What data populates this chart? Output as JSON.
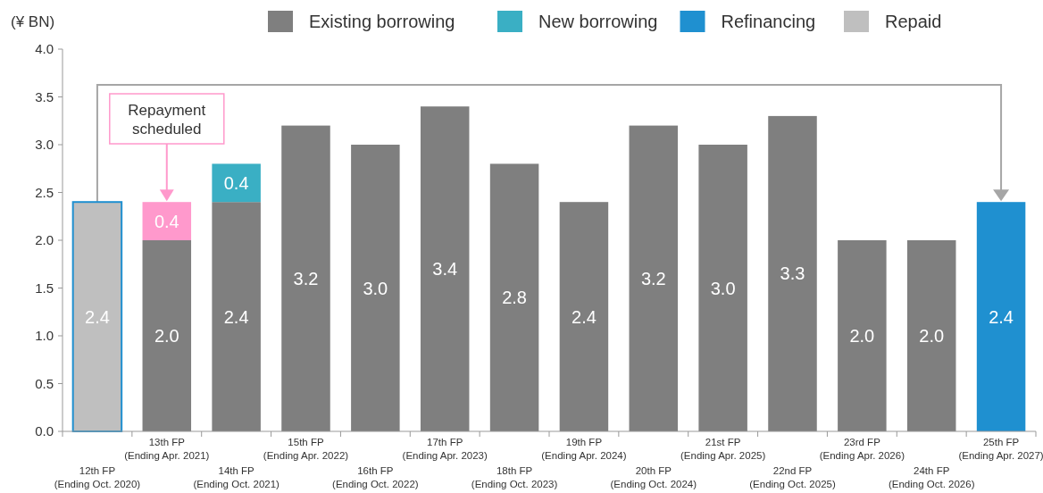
{
  "chart_data": {
    "type": "bar",
    "stacked": true,
    "ylabel": "(¥ BN)",
    "categories": [
      "12th FP\n(Ending Oct. 2020)",
      "13th FP\n(Ending Apr. 2021)",
      "14th FP\n(Ending Oct. 2021)",
      "15th FP\n(Ending Apr. 2022)",
      "16th FP\n(Ending Oct. 2022)",
      "17th FP\n(Ending Apr. 2023)",
      "18th FP\n(Ending Oct. 2023)",
      "19th FP\n(Ending Apr. 2024)",
      "20th FP\n(Ending Oct. 2024)",
      "21st FP\n(Ending Apr. 2025)",
      "22nd FP\n(Ending Oct. 2025)",
      "23rd FP\n(Ending Apr. 2026)",
      "24th FP\n(Ending Oct. 2026)",
      "25th FP\n(Ending Apr. 2027)"
    ],
    "series": [
      {
        "name": "Existing borrowing",
        "color": "#7f7f7f",
        "values": [
          null,
          2.0,
          2.4,
          3.2,
          3.0,
          3.4,
          2.8,
          2.4,
          3.2,
          3.0,
          3.3,
          2.0,
          2.0,
          null
        ],
        "value_labels": [
          null,
          "2.0",
          "2.4",
          "3.2",
          "3.0",
          "3.4",
          "2.8",
          "2.4",
          "3.2",
          "3.0",
          "3.3",
          "2.0",
          "2.0",
          null
        ]
      },
      {
        "name": "New borrowing",
        "color": "#3aafc4",
        "values": [
          null,
          null,
          0.4,
          null,
          null,
          null,
          null,
          null,
          null,
          null,
          null,
          null,
          null,
          null
        ],
        "value_labels": [
          null,
          null,
          "0.4",
          null,
          null,
          null,
          null,
          null,
          null,
          null,
          null,
          null,
          null,
          null
        ]
      },
      {
        "name": "Refinancing",
        "color": "#1f90d0",
        "values": [
          null,
          null,
          null,
          null,
          null,
          null,
          null,
          null,
          null,
          null,
          null,
          null,
          null,
          2.4
        ],
        "value_labels": [
          null,
          null,
          null,
          null,
          null,
          null,
          null,
          null,
          null,
          null,
          null,
          null,
          null,
          "2.4"
        ]
      },
      {
        "name": "Repaid",
        "color": "#bfbfbf",
        "values": [
          2.4,
          null,
          null,
          null,
          null,
          null,
          null,
          null,
          null,
          null,
          null,
          null,
          null,
          null
        ],
        "value_labels": [
          "2.4",
          null,
          null,
          null,
          null,
          null,
          null,
          null,
          null,
          null,
          null,
          null,
          null,
          null
        ]
      },
      {
        "color": "#ff99cc",
        "values": [
          null,
          0.4,
          null,
          null,
          null,
          null,
          null,
          null,
          null,
          null,
          null,
          null,
          null,
          null
        ],
        "value_labels": [
          null,
          "0.4",
          null,
          null,
          null,
          null,
          null,
          null,
          null,
          null,
          null,
          null,
          null,
          null
        ]
      }
    ],
    "ylim": [
      0,
      4
    ],
    "yticks": [
      {
        "value": 0,
        "label": "0.0"
      },
      {
        "value": 0.5,
        "label": "0.5"
      },
      {
        "value": 1,
        "label": "1.0"
      },
      {
        "value": 1.5,
        "label": "1.5"
      },
      {
        "value": 2,
        "label": "2.0"
      },
      {
        "value": 2.5,
        "label": "2.5"
      },
      {
        "value": 3,
        "label": "3.0"
      },
      {
        "value": 3.5,
        "label": "3.5"
      },
      {
        "value": 4,
        "label": "4.0"
      }
    ],
    "legend": "top",
    "grid": false,
    "annotations": [
      "Repayment\nscheduled"
    ]
  }
}
